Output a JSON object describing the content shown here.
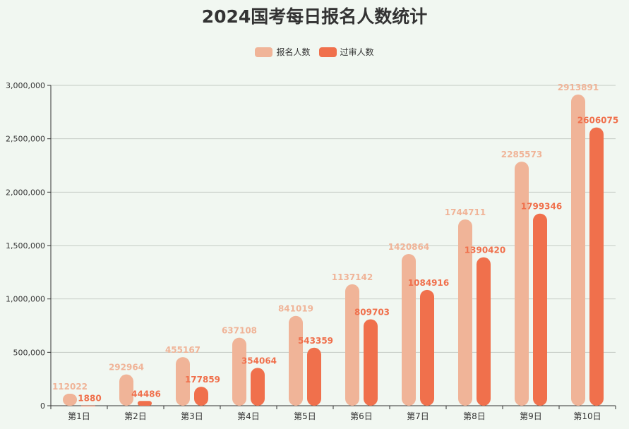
{
  "chart_data": {
    "type": "bar",
    "title": "2024国考每日报名人数统计",
    "categories": [
      "第1日",
      "第2日",
      "第3日",
      "第4日",
      "第5日",
      "第6日",
      "第7日",
      "第8日",
      "第9日",
      "第10日"
    ],
    "series": [
      {
        "name": "报名人数",
        "color": "#f0b498",
        "values": [
          112022,
          292964,
          455167,
          637108,
          841019,
          1137142,
          1420864,
          1744711,
          2285573,
          2913891
        ]
      },
      {
        "name": "过审人数",
        "color": "#f0704c",
        "values": [
          1880,
          44486,
          177859,
          354064,
          543359,
          809703,
          1084916,
          1390420,
          1799346,
          2606075
        ]
      }
    ],
    "ylim": [
      0,
      3000000
    ],
    "yticks": [
      "0",
      "500,000",
      "1,000,000",
      "1,500,000",
      "2,000,000",
      "2,500,000",
      "3,000,000"
    ],
    "grid": true,
    "legend": "top-center",
    "xlabel": "",
    "ylabel": ""
  }
}
